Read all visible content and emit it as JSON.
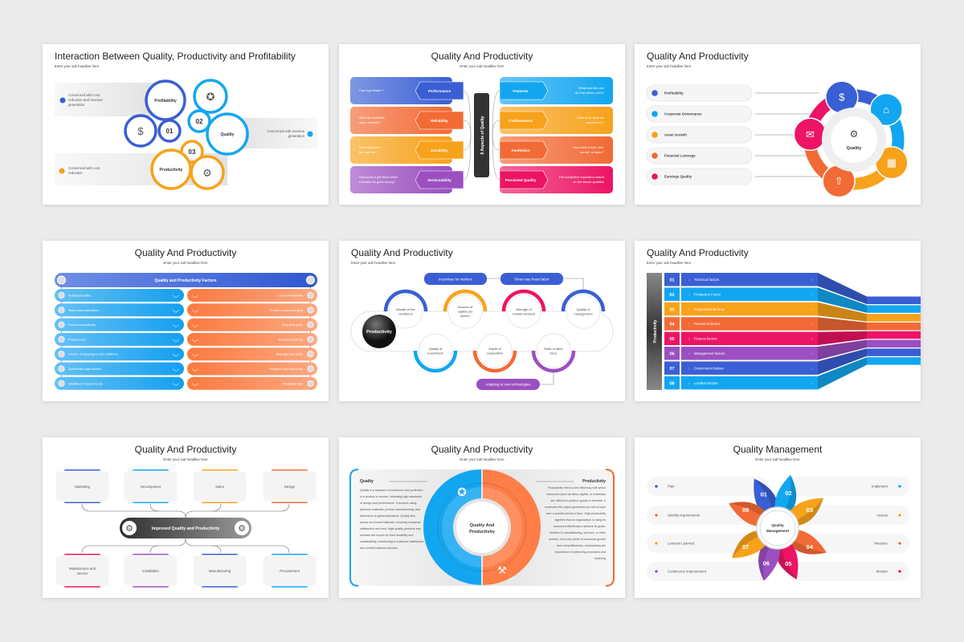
{
  "subtitle": "Enter your sub headline here",
  "colors": {
    "blue": "#3a5fd4",
    "light_blue": "#13a6f0",
    "amber": "#f7a21b",
    "orange": "#f26a35",
    "pink": "#ec1464",
    "purple": "#9b4fc0",
    "dark": "#333333",
    "background": "#ebebec"
  },
  "s1": {
    "title": "Interaction Between Quality, Productivity and Profitability",
    "bands": [
      "Concerned with cost reduction and revenue generation",
      "Concerned with revenue generation",
      "Concerned with cost reduction"
    ],
    "circles": {
      "profitability": "Profitability",
      "quality": "Quality",
      "productivity": "Productivity",
      "n1": "01",
      "n2": "02",
      "n3": "03"
    },
    "icons": [
      "money-growth-icon",
      "award-icon",
      "gear-clock-icon"
    ]
  },
  "s2": {
    "title": "Quality And Productivity",
    "center": "8 Aspects of Quality",
    "left": [
      {
        "label": "Performance",
        "text": "Can it go faster ?"
      },
      {
        "label": "Reliability",
        "text": "Will it be available when needed ?"
      },
      {
        "label": "Durability",
        "text": "How long can it be used for ?"
      },
      {
        "label": "Serviceability",
        "text": "How does it get fixed when it breaks for goes wrong?"
      }
    ],
    "right": [
      {
        "label": "Features",
        "text": "What can this one do that others can't?"
      },
      {
        "label": "Conformance",
        "text": "Does it do what we expect it to ?"
      },
      {
        "label": "Aesthetics",
        "text": "How does it look, feel, sound, or taste ?"
      },
      {
        "label": "Perceived Quality",
        "text": "The subjective reputation based on the above qualities"
      }
    ]
  },
  "s3": {
    "title": "Quality And Productivity",
    "items": [
      "Profitability",
      "Corporate Governance",
      "Asset Growth",
      "Financial Leverage",
      "Earnings Quality"
    ],
    "center": "Quality"
  },
  "s4": {
    "title": "Quality And Productivity",
    "header": "Quality and Productivity Factors",
    "left": [
      "Individual ability",
      "Team communication",
      "Product complexity",
      "Product size",
      "Choice of languages and notations",
      "Systematic approaches",
      "Stability of requirements"
    ],
    "right": [
      "Level of reliability",
      "Problem understanding",
      "Required skills",
      "Required training",
      "Management skills",
      "Facilities and resources",
      "Available time"
    ]
  },
  "s5": {
    "title": "Quality And Productivity",
    "center": "Productivity",
    "top_pills": [
      "Incentives for workers",
      "Firms may hoard labor"
    ],
    "bottom_pill": "Adapting to new technologies",
    "top_circles": [
      [
        "Morale of the",
        "workforce"
      ],
      [
        "Amount of",
        "capital per",
        "worker"
      ],
      [
        "Strength of",
        "market demand"
      ],
      [
        "Quality of",
        "management"
      ]
    ],
    "bottom_circles": [
      [
        "Quality of",
        "investment"
      ],
      [
        "Depth of",
        "competition"
      ],
      [
        "Skills of labor",
        "force"
      ]
    ]
  },
  "s6": {
    "title": "Quality And Productivity",
    "side": "Productivity",
    "rows": [
      {
        "num": "01",
        "label": "Technical factors"
      },
      {
        "num": "02",
        "label": "Production Factor"
      },
      {
        "num": "03",
        "label": "Organizational factor"
      },
      {
        "num": "04",
        "label": "Personnel factors"
      },
      {
        "num": "05",
        "label": "Finance factors"
      },
      {
        "num": "06",
        "label": "Management factors"
      },
      {
        "num": "07",
        "label": "Government factors"
      },
      {
        "num": "08",
        "label": "Location factors"
      }
    ]
  },
  "s7": {
    "title": "Quality And Productivity",
    "center": "Improved Quality and Productivity",
    "top": [
      "Marketing",
      "Development",
      "Sales",
      "Design"
    ],
    "bottom": [
      [
        "Maintenance and",
        "service"
      ],
      [
        "Installation"
      ],
      [
        "Manufacturing"
      ],
      [
        "Procurement"
      ]
    ]
  },
  "s8": {
    "title": "Quality And Productivity",
    "center": [
      "Quality And",
      "Productivity"
    ],
    "quality_title": "Quality",
    "quality_text": "Quality is a measure of excellence and perfection in a product or service, indicating high standards of design and performance. It involves using premium materials, precise manufacturing, and adherence to global standards. Quality also serves as a brand hallmark, ensuring consumer satisfaction and trust. High-quality products and services are known for their durability and sustainability, contributing to customer satisfaction and overall business success.",
    "productivity_title": "Productivity",
    "productivity_text": "Productivity refers to the efficiency with which resources (such as labor, capital, or materials) are utilized to produce goods or services. It measures the output generated per unit of input over a specific period of time. High productivity signifies that an organization is using its resources effectively to achieve its goals, whether in manufacturing, services, or other sectors. It is a key driver of economic growth and competitiveness, emphasizing the importance of optimizing processes and fostering"
  },
  "s9": {
    "title": "Quality Management",
    "center": [
      "Quality",
      "Management"
    ],
    "left": [
      "Plan",
      "Identify requirements",
      "Lessons Learned",
      "Continuous Improvement"
    ],
    "right": [
      "Implement",
      "Assess",
      "Measure",
      "Monitor"
    ],
    "petals": [
      "01",
      "02",
      "03",
      "04",
      "05",
      "06",
      "07",
      "08"
    ]
  }
}
